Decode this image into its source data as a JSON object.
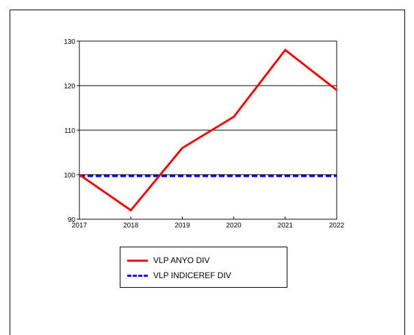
{
  "chart_data": {
    "type": "line",
    "x": [
      "2017",
      "2018",
      "2019",
      "2020",
      "2021",
      "2022"
    ],
    "series": [
      {
        "name": "VLP ANYO DIV",
        "values": [
          100,
          92,
          106,
          113,
          128,
          119
        ],
        "color": "#ff0000",
        "style": "solid"
      },
      {
        "name": "VLP INDICEREF DIV",
        "values": [
          99.7,
          99.7,
          99.7,
          99.7,
          99.7,
          99.7
        ],
        "color": "#0000ff",
        "style": "dashed"
      }
    ],
    "yticks": [
      "90",
      "100",
      "110",
      "120",
      "130"
    ],
    "ylim": [
      90,
      130
    ],
    "grid": "horizontal",
    "legend": "below"
  }
}
